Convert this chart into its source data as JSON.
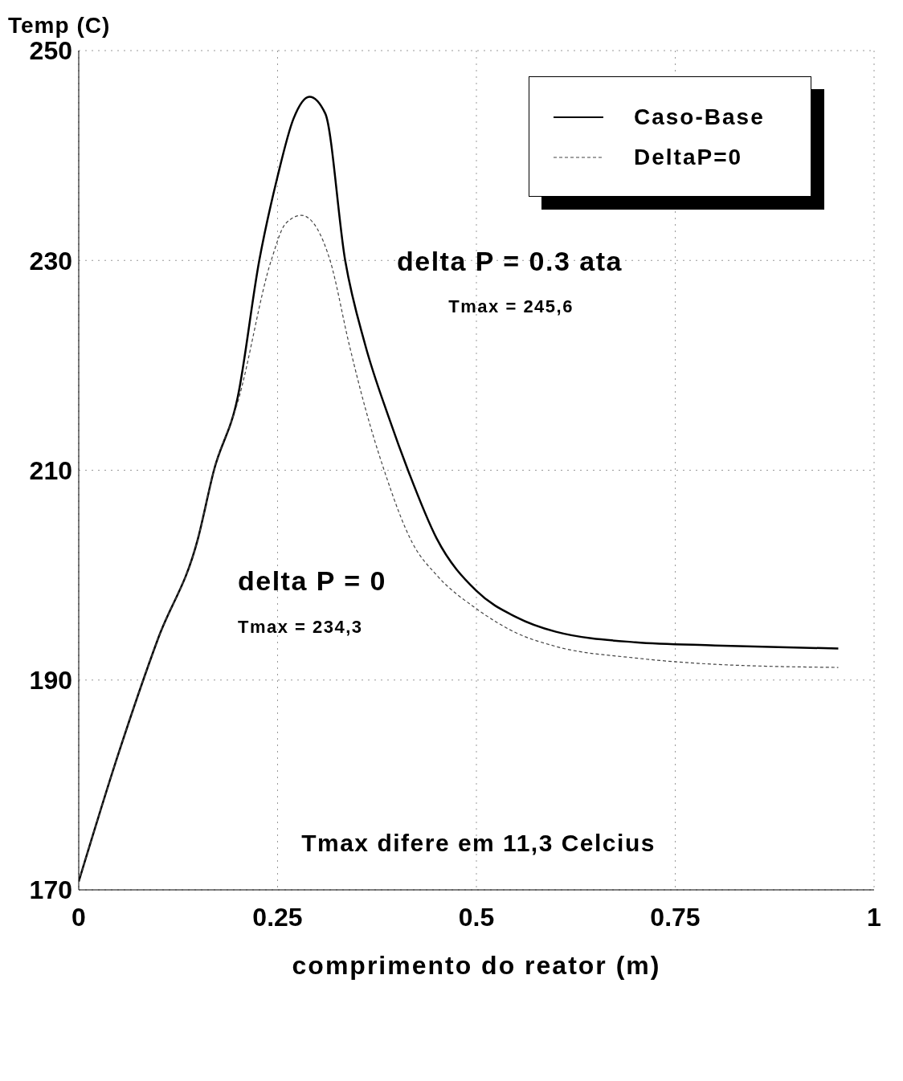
{
  "chart_data": {
    "type": "line",
    "xlabel": "comprimento do reator (m)",
    "ylabel": "Temp (C)",
    "xlim": [
      0,
      1
    ],
    "xticks": [
      0,
      0.25,
      0.5,
      0.75,
      1
    ],
    "ylim": [
      170,
      250
    ],
    "yticks": [
      170,
      190,
      210,
      230,
      250
    ],
    "grid": true,
    "legend": "top right",
    "marker": "none",
    "series": [
      {
        "name": "Caso-Base",
        "color": "#000000",
        "line_style": "solid",
        "x": [
          0,
          0.05,
          0.1,
          0.15,
          0.17,
          0.2,
          0.227,
          0.25,
          0.27,
          0.29,
          0.31,
          0.335,
          0.36,
          0.39,
          0.414,
          0.45,
          0.5,
          0.55,
          0.6,
          0.7,
          0.8,
          0.955
        ],
        "values": [
          170.8,
          183,
          194,
          203.5,
          210,
          217,
          230,
          238,
          243.5,
          245.6,
          244,
          230,
          222,
          215,
          210,
          203.5,
          198.5,
          196,
          194.6,
          193.6,
          193.3,
          193.0
        ]
      },
      {
        "name": "DeltaP=0",
        "color": "#444444",
        "line_style": "dashed",
        "x": [
          0,
          0.05,
          0.1,
          0.15,
          0.17,
          0.2,
          0.242,
          0.26,
          0.28,
          0.3,
          0.316,
          0.34,
          0.36,
          0.384,
          0.42,
          0.45,
          0.5,
          0.55,
          0.6,
          0.7,
          0.8,
          0.955
        ],
        "values": [
          170.8,
          183,
          194,
          203.5,
          210,
          216.5,
          230,
          233.5,
          234.3,
          233,
          230,
          222,
          216,
          210,
          203,
          200,
          196.8,
          194.5,
          193.2,
          192.1,
          191.5,
          191.2
        ]
      }
    ],
    "annotations": [
      "delta P = 0.3 ata",
      "Tmax = 245,6",
      "delta P = 0",
      "Tmax = 234,3",
      "Tmax difere em 11,3 Celcius"
    ]
  }
}
